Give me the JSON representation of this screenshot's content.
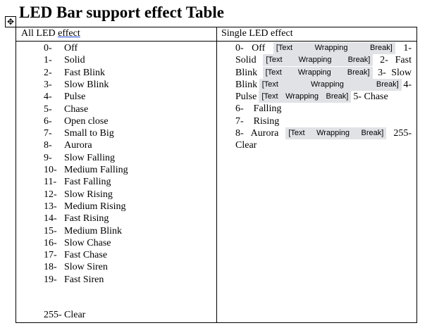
{
  "title": "LED Bar support effect Table",
  "headers": {
    "all_prefix": "All LED",
    "all_link": "effect",
    "single": "Single LED effect"
  },
  "all_led": [
    {
      "n": "0-",
      "l": "Off"
    },
    {
      "n": "1-",
      "l": "Solid"
    },
    {
      "n": "2-",
      "l": "Fast Blink"
    },
    {
      "n": "3-",
      "l": "Slow Blink"
    },
    {
      "n": "4-",
      "l": "Pulse"
    },
    {
      "n": "5-",
      "l": "Chase"
    },
    {
      "n": "6-",
      "l": "Open close"
    },
    {
      "n": "7-",
      "l": "Small to Big"
    },
    {
      "n": "8-",
      "l": "Aurora"
    },
    {
      "n": "9-",
      "l": "Slow Falling"
    },
    {
      "n": "10-",
      "l": "Medium Falling"
    },
    {
      "n": "11-",
      "l": "Fast Falling"
    },
    {
      "n": "12-",
      "l": "Slow Rising"
    },
    {
      "n": "13-",
      "l": "Medium Rising"
    },
    {
      "n": "14-",
      "l": "Fast Rising"
    },
    {
      "n": "15-",
      "l": "Medium Blink"
    },
    {
      "n": "16-",
      "l": "Slow Chase"
    },
    {
      "n": "17-",
      "l": "Fast Chase"
    },
    {
      "n": "18-",
      "l": "Slow Siren"
    },
    {
      "n": "19-",
      "l": "Fast Siren"
    }
  ],
  "all_last": {
    "n": "255-",
    "l": "Clear"
  },
  "twb": [
    "[Text",
    "Wrapping",
    "Break]"
  ],
  "single": {
    "l1": [
      "0-",
      "Off",
      "1-"
    ],
    "l2": [
      "Solid",
      "2-",
      "Fast"
    ],
    "l3": [
      "Blink",
      "3-",
      "Slow"
    ],
    "l4": [
      "Blink",
      "4-"
    ],
    "l5": [
      "Pulse",
      "5- Chase"
    ],
    "l6": [
      "6-",
      "Falling"
    ],
    "l7": [
      "7-",
      "Rising"
    ],
    "l8": [
      "8-",
      "Aurora",
      "255-"
    ],
    "l9": [
      "Clear"
    ]
  }
}
